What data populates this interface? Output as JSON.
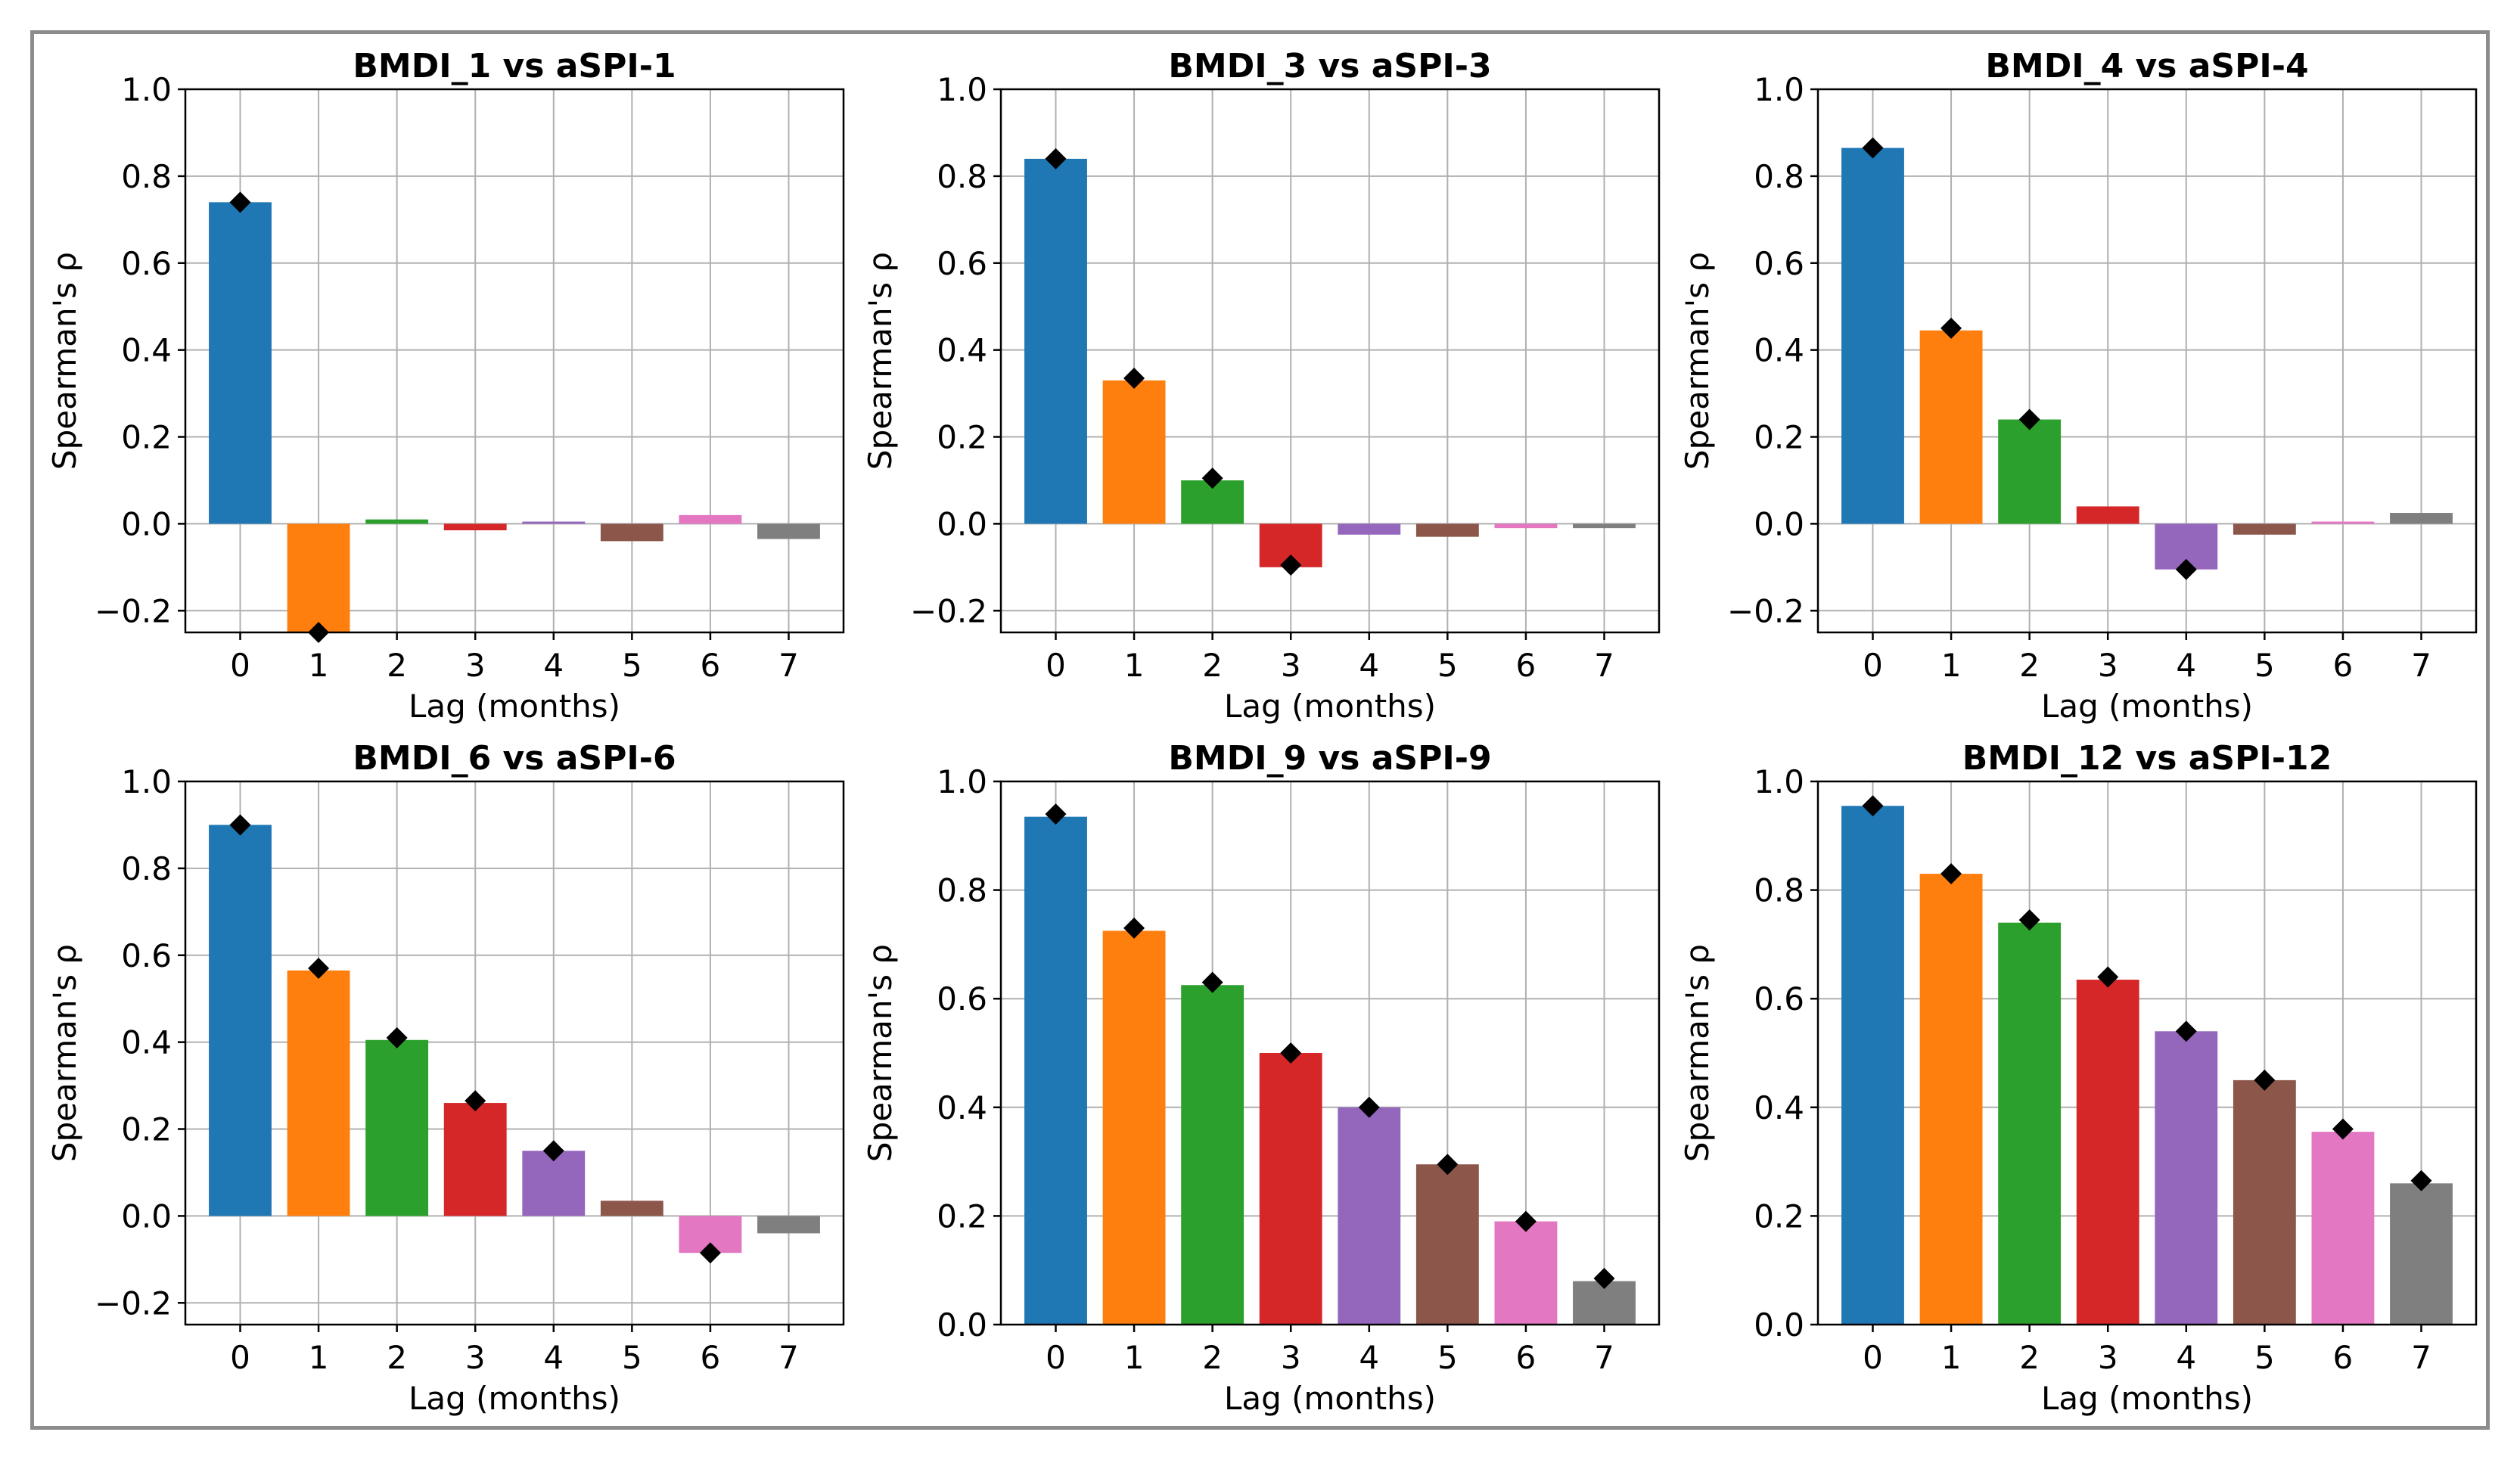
{
  "colors": [
    "#1f77b4",
    "#ff7f0e",
    "#2ca02c",
    "#d62728",
    "#9467bd",
    "#8c564b",
    "#e377c2",
    "#7f7f7f"
  ],
  "marker_color": "#000000",
  "chart_data": [
    {
      "type": "bar",
      "title": "BMDI_1 vs aSPI-1",
      "xlabel": "Lag (months)",
      "ylabel": "Spearman's ρ",
      "categories": [
        "0",
        "1",
        "2",
        "3",
        "4",
        "5",
        "6",
        "7"
      ],
      "values": [
        0.74,
        -0.25,
        0.01,
        -0.015,
        0.005,
        -0.04,
        0.02,
        -0.035
      ],
      "markers": [
        0.74,
        -0.25,
        null,
        null,
        null,
        null,
        null,
        null
      ],
      "ylim": [
        -0.25,
        1.0
      ],
      "yticks": [
        -0.2,
        0.0,
        0.2,
        0.4,
        0.6,
        0.8,
        1.0
      ],
      "ytick_labels": [
        "−0.2",
        "0.0",
        "0.2",
        "0.4",
        "0.6",
        "0.8",
        "1.0"
      ],
      "grid": true
    },
    {
      "type": "bar",
      "title": "BMDI_3 vs aSPI-3",
      "xlabel": "Lag (months)",
      "ylabel": "Spearman's ρ",
      "categories": [
        "0",
        "1",
        "2",
        "3",
        "4",
        "5",
        "6",
        "7"
      ],
      "values": [
        0.84,
        0.33,
        0.1,
        -0.1,
        -0.025,
        -0.03,
        -0.01,
        -0.01
      ],
      "markers": [
        0.84,
        0.335,
        0.105,
        -0.095,
        null,
        null,
        null,
        null
      ],
      "ylim": [
        -0.25,
        1.0
      ],
      "yticks": [
        -0.2,
        0.0,
        0.2,
        0.4,
        0.6,
        0.8,
        1.0
      ],
      "ytick_labels": [
        "−0.2",
        "0.0",
        "0.2",
        "0.4",
        "0.6",
        "0.8",
        "1.0"
      ],
      "grid": true
    },
    {
      "type": "bar",
      "title": "BMDI_4 vs aSPI-4",
      "xlabel": "Lag (months)",
      "ylabel": "Spearman's ρ",
      "categories": [
        "0",
        "1",
        "2",
        "3",
        "4",
        "5",
        "6",
        "7"
      ],
      "values": [
        0.865,
        0.445,
        0.24,
        0.04,
        -0.105,
        -0.025,
        0.005,
        0.025
      ],
      "markers": [
        0.865,
        0.45,
        0.24,
        null,
        -0.105,
        null,
        null,
        null
      ],
      "ylim": [
        -0.25,
        1.0
      ],
      "yticks": [
        -0.2,
        0.0,
        0.2,
        0.4,
        0.6,
        0.8,
        1.0
      ],
      "ytick_labels": [
        "−0.2",
        "0.0",
        "0.2",
        "0.4",
        "0.6",
        "0.8",
        "1.0"
      ],
      "grid": true
    },
    {
      "type": "bar",
      "title": "BMDI_6 vs aSPI-6",
      "xlabel": "Lag (months)",
      "ylabel": "Spearman's ρ",
      "categories": [
        "0",
        "1",
        "2",
        "3",
        "4",
        "5",
        "6",
        "7"
      ],
      "values": [
        0.9,
        0.565,
        0.405,
        0.26,
        0.15,
        0.035,
        -0.085,
        -0.04
      ],
      "markers": [
        0.9,
        0.57,
        0.41,
        0.265,
        0.15,
        null,
        -0.085,
        null
      ],
      "ylim": [
        -0.25,
        1.0
      ],
      "yticks": [
        -0.2,
        0.0,
        0.2,
        0.4,
        0.6,
        0.8,
        1.0
      ],
      "ytick_labels": [
        "−0.2",
        "0.0",
        "0.2",
        "0.4",
        "0.6",
        "0.8",
        "1.0"
      ],
      "grid": true
    },
    {
      "type": "bar",
      "title": "BMDI_9 vs aSPI-9",
      "xlabel": "Lag (months)",
      "ylabel": "Spearman's ρ",
      "categories": [
        "0",
        "1",
        "2",
        "3",
        "4",
        "5",
        "6",
        "7"
      ],
      "values": [
        0.935,
        0.725,
        0.625,
        0.5,
        0.4,
        0.295,
        0.19,
        0.08
      ],
      "markers": [
        0.94,
        0.73,
        0.63,
        0.5,
        0.4,
        0.295,
        0.19,
        0.085
      ],
      "ylim": [
        0.0,
        1.0
      ],
      "yticks": [
        0.0,
        0.2,
        0.4,
        0.6,
        0.8,
        1.0
      ],
      "ytick_labels": [
        "0.0",
        "0.2",
        "0.4",
        "0.6",
        "0.8",
        "1.0"
      ],
      "grid": true
    },
    {
      "type": "bar",
      "title": "BMDI_12 vs aSPI-12",
      "xlabel": "Lag (months)",
      "ylabel": "Spearman's ρ",
      "categories": [
        "0",
        "1",
        "2",
        "3",
        "4",
        "5",
        "6",
        "7"
      ],
      "values": [
        0.955,
        0.83,
        0.74,
        0.635,
        0.54,
        0.45,
        0.355,
        0.26
      ],
      "markers": [
        0.955,
        0.83,
        0.745,
        0.64,
        0.54,
        0.45,
        0.36,
        0.265
      ],
      "ylim": [
        0.0,
        1.0
      ],
      "yticks": [
        0.0,
        0.2,
        0.4,
        0.6,
        0.8,
        1.0
      ],
      "ytick_labels": [
        "0.0",
        "0.2",
        "0.4",
        "0.6",
        "0.8",
        "1.0"
      ],
      "grid": true
    }
  ]
}
